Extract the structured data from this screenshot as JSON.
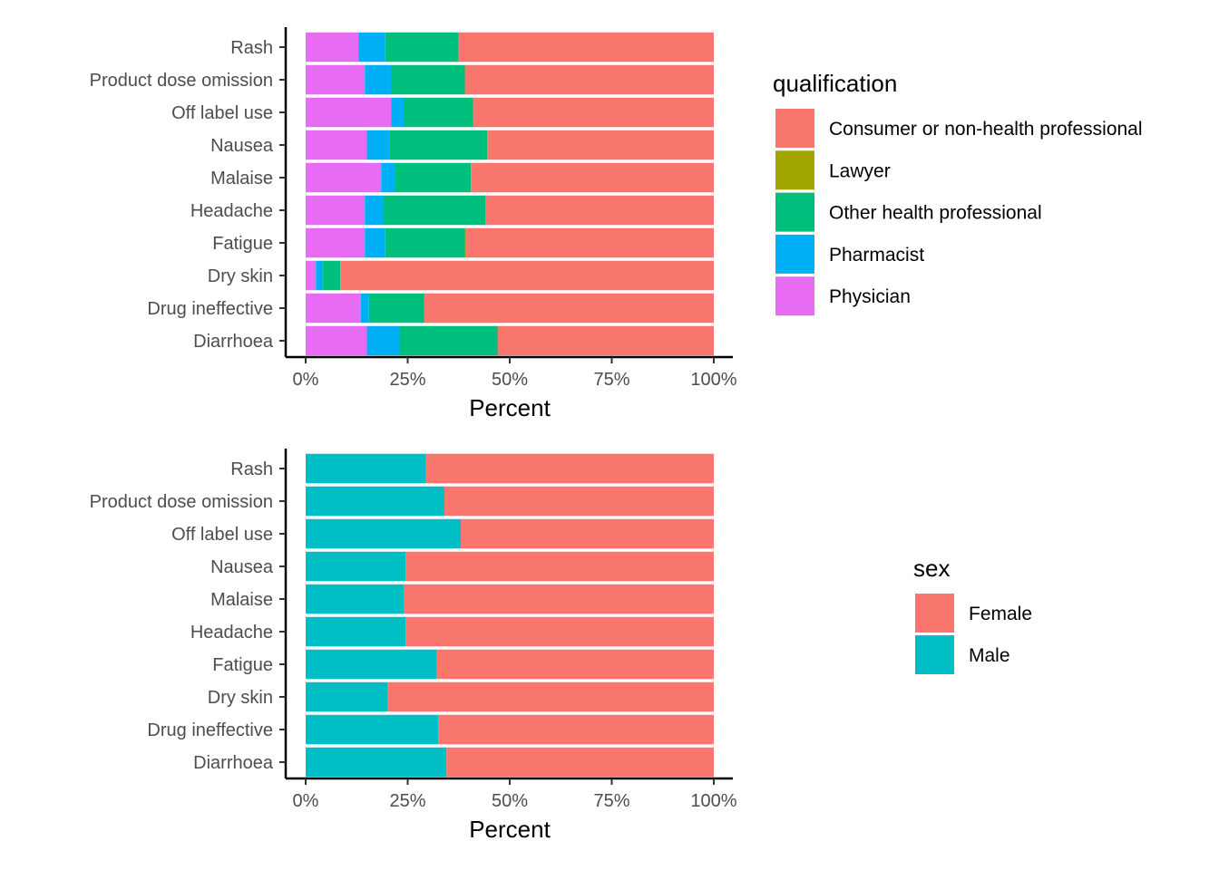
{
  "chart_data": [
    {
      "type": "bar",
      "orientation": "horizontal",
      "stacked": "percent",
      "categories": [
        "Rash",
        "Product dose omission",
        "Off label use",
        "Nausea",
        "Malaise",
        "Headache",
        "Fatigue",
        "Dry skin",
        "Drug ineffective",
        "Diarrhoea"
      ],
      "xlabel": "Percent",
      "ylabel": "",
      "xlim": [
        0,
        100
      ],
      "x_ticks": [
        "0%",
        "25%",
        "50%",
        "75%",
        "100%"
      ],
      "grid": false,
      "legend": {
        "title": "qualification",
        "placement": "right",
        "entries": [
          "Consumer or non-health professional",
          "Lawyer",
          "Other health professional",
          "Pharmacist",
          "Physician"
        ]
      },
      "series": [
        {
          "name": "Physician",
          "color": "#E76BF3",
          "values": [
            13,
            14.5,
            21,
            15,
            18.5,
            14.5,
            14.5,
            2.5,
            13.5,
            15
          ]
        },
        {
          "name": "Pharmacist",
          "color": "#00B0F6",
          "values": [
            6.5,
            6.5,
            3,
            5.5,
            3.5,
            4.5,
            5,
            1.8,
            2,
            8
          ]
        },
        {
          "name": "Other health professional",
          "color": "#00BF7D",
          "values": [
            18,
            18,
            17,
            24,
            18.5,
            25,
            19.5,
            4.2,
            13.5,
            24
          ]
        },
        {
          "name": "Lawyer",
          "color": "#A3A500",
          "values": [
            0,
            0,
            0,
            0,
            0,
            0,
            0.3,
            0,
            0,
            0
          ]
        },
        {
          "name": "Consumer or non-health professional",
          "color": "#F8766D",
          "values": [
            62.5,
            61,
            59,
            55.5,
            59.5,
            56,
            60.7,
            91.5,
            71,
            53
          ]
        }
      ]
    },
    {
      "type": "bar",
      "orientation": "horizontal",
      "stacked": "percent",
      "categories": [
        "Rash",
        "Product dose omission",
        "Off label use",
        "Nausea",
        "Malaise",
        "Headache",
        "Fatigue",
        "Dry skin",
        "Drug ineffective",
        "Diarrhoea"
      ],
      "xlabel": "Percent",
      "ylabel": "",
      "xlim": [
        0,
        100
      ],
      "x_ticks": [
        "0%",
        "25%",
        "50%",
        "75%",
        "100%"
      ],
      "grid": false,
      "legend": {
        "title": "sex",
        "placement": "right",
        "entries": [
          "Female",
          "Male"
        ]
      },
      "series": [
        {
          "name": "Male",
          "color": "#00BFC4",
          "values": [
            29.5,
            34,
            38,
            24.5,
            24,
            24.5,
            32,
            20,
            32.5,
            34.5
          ]
        },
        {
          "name": "Female",
          "color": "#F8766D",
          "values": [
            70.5,
            66,
            62,
            75.5,
            76,
            75.5,
            68,
            80,
            67.5,
            65.5
          ]
        }
      ]
    }
  ]
}
